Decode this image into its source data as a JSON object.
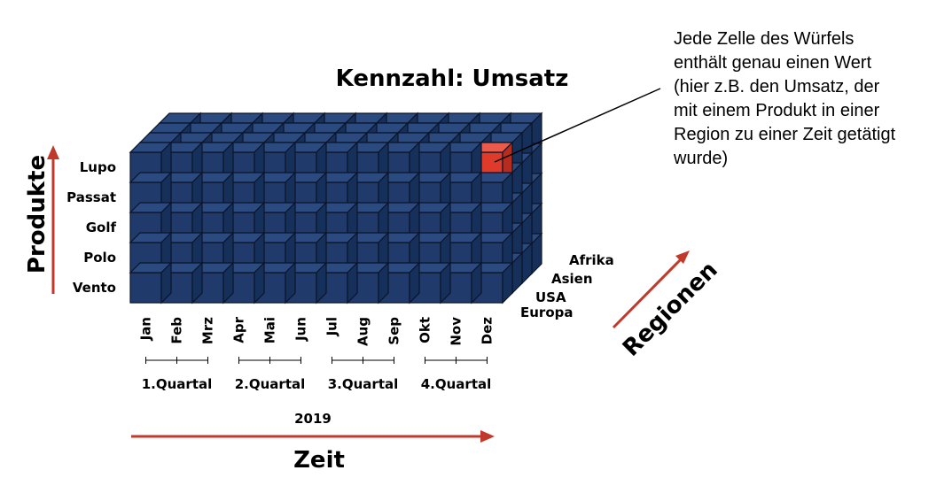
{
  "title": "Kennzahl: Umsatz",
  "note": [
    "Jede Zelle des Würfels",
    "enthält genau einen Wert",
    "(hier z.B. den Umsatz, der",
    "mit einem Produkt in einer",
    "Region zu einer Zeit getätigt",
    "wurde)"
  ],
  "products_axis": "Produkte",
  "products": [
    "Lupo",
    "Passat",
    "Golf",
    "Polo",
    "Vento"
  ],
  "months": [
    "Jan",
    "Feb",
    "Mrz",
    "Apr",
    "Mai",
    "Jun",
    "Jul",
    "Aug",
    "Sep",
    "Okt",
    "Nov",
    "Dez"
  ],
  "quarters": [
    "1.Quartal",
    "2.Quartal",
    "3.Quartal",
    "4.Quartal"
  ],
  "year": "2019",
  "time_axis": "Zeit",
  "regions_axis": "Regionen",
  "regions": [
    "Europa",
    "USA",
    "Asien",
    "Afrika"
  ],
  "highlight": {
    "product": "Lupo",
    "month": "Dez"
  },
  "colors": {
    "cube_front": "#1f3a6b",
    "cube_top": "#2a4a80",
    "cube_side": "#16305c",
    "edge": "#0b1428",
    "highlight_front": "#e03a2a",
    "highlight_top": "#ea5b4c",
    "highlight_side": "#b62c1f",
    "arrow": "#c0392b"
  }
}
